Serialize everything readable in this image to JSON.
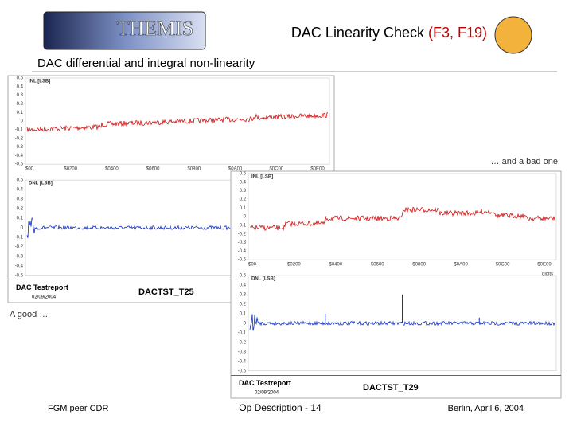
{
  "header": {
    "logo": "THEMIS",
    "title": "DAC Linearity Check",
    "title_highlight": "(F3, F19)"
  },
  "subtitle": "DAC differential and integral non-linearity",
  "captions": {
    "bad": "… and a bad one.",
    "good": "A good …"
  },
  "panels": [
    {
      "inl_label": "INL [LSB]",
      "dnl_label": "DNL [LSB]",
      "y_ticks": [
        "0.5",
        "0.4",
        "0.3",
        "0.2",
        "0.1",
        "0",
        "-0.1",
        "-0.2",
        "-0.3",
        "-0.4",
        "-0.5"
      ],
      "x_ticks": [
        "$00",
        "$0200",
        "$0400",
        "$0600",
        "$0800",
        "$0A00",
        "$0C00",
        "$0E00"
      ],
      "report": "DAC Testreport",
      "date": "02/09/2004",
      "id": "DACTST_T25"
    },
    {
      "inl_label": "INL [LSB]",
      "dnl_label": "DNL [LSB]",
      "y_ticks": [
        "0.5",
        "0.4",
        "0.3",
        "0.2",
        "0.1",
        "0",
        "-0.1",
        "-0.2",
        "-0.3",
        "-0.4",
        "-0.5"
      ],
      "x_ticks": [
        "$00",
        "$0200",
        "$0400",
        "$0600",
        "$0800",
        "$0A00",
        "$0C00",
        "$0E00"
      ],
      "x_axis_label": "digits",
      "report": "DAC Testreport",
      "date": "02/09/2004",
      "id": "DACTST_T29"
    }
  ],
  "footer": {
    "left": "FGM peer CDR",
    "center": "Op Description - 14",
    "right": "Berlin, April 6, 2004"
  }
}
